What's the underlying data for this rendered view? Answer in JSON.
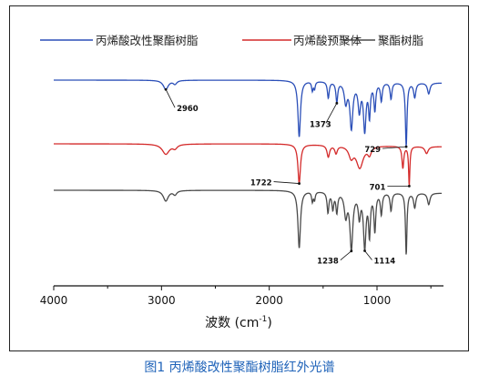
{
  "chart_data": {
    "type": "line",
    "xlabel": "波数 (cm",
    "xlabel_sup": "-1",
    "xlabel_close": ")",
    "ylabel": "",
    "xlim": [
      4000,
      400
    ],
    "x_reversed": true,
    "grid": false,
    "legend_position": "top",
    "x_ticks": [
      4000,
      3000,
      2000,
      1000
    ],
    "series": [
      {
        "name": "丙烯酸改性聚酯树脂",
        "color": "#2b4fb8",
        "baseline": 0.0,
        "peaks": [
          {
            "x": 2960,
            "depth": 0.1,
            "width": 28
          },
          {
            "x": 2875,
            "depth": 0.04,
            "width": 20
          },
          {
            "x": 1722,
            "depth": 0.62,
            "width": 14
          },
          {
            "x": 1600,
            "depth": 0.1,
            "width": 8
          },
          {
            "x": 1580,
            "depth": 0.08,
            "width": 8
          },
          {
            "x": 1452,
            "depth": 0.18,
            "width": 10
          },
          {
            "x": 1373,
            "depth": 0.22,
            "width": 10
          },
          {
            "x": 1290,
            "depth": 0.22,
            "width": 16
          },
          {
            "x": 1238,
            "depth": 0.5,
            "width": 16
          },
          {
            "x": 1164,
            "depth": 0.3,
            "width": 14
          },
          {
            "x": 1114,
            "depth": 0.52,
            "width": 14
          },
          {
            "x": 1070,
            "depth": 0.36,
            "width": 10
          },
          {
            "x": 1020,
            "depth": 0.3,
            "width": 10
          },
          {
            "x": 960,
            "depth": 0.2,
            "width": 10
          },
          {
            "x": 870,
            "depth": 0.18,
            "width": 10
          },
          {
            "x": 729,
            "depth": 0.7,
            "width": 9
          },
          {
            "x": 650,
            "depth": 0.16,
            "width": 12
          },
          {
            "x": 520,
            "depth": 0.12,
            "width": 14
          }
        ]
      },
      {
        "name": "丙烯酸预聚体",
        "color": "#d42a2a",
        "baseline": 0.0,
        "peaks": [
          {
            "x": 2960,
            "depth": 0.13,
            "width": 40
          },
          {
            "x": 2875,
            "depth": 0.05,
            "width": 25
          },
          {
            "x": 1722,
            "depth": 0.5,
            "width": 14
          },
          {
            "x": 1452,
            "depth": 0.15,
            "width": 14
          },
          {
            "x": 1380,
            "depth": 0.1,
            "width": 14
          },
          {
            "x": 1240,
            "depth": 0.14,
            "width": 26
          },
          {
            "x": 1160,
            "depth": 0.28,
            "width": 38
          },
          {
            "x": 1070,
            "depth": 0.1,
            "width": 20
          },
          {
            "x": 760,
            "depth": 0.28,
            "width": 10
          },
          {
            "x": 701,
            "depth": 0.5,
            "width": 7
          },
          {
            "x": 540,
            "depth": 0.09,
            "width": 18
          }
        ]
      },
      {
        "name": "聚酯树脂",
        "color": "#4a4a4a",
        "baseline": 0.0,
        "peaks": [
          {
            "x": 2960,
            "depth": 0.13,
            "width": 28
          },
          {
            "x": 2875,
            "depth": 0.05,
            "width": 20
          },
          {
            "x": 1722,
            "depth": 0.7,
            "width": 14
          },
          {
            "x": 1600,
            "depth": 0.12,
            "width": 8
          },
          {
            "x": 1580,
            "depth": 0.1,
            "width": 8
          },
          {
            "x": 1455,
            "depth": 0.25,
            "width": 10
          },
          {
            "x": 1410,
            "depth": 0.2,
            "width": 10
          },
          {
            "x": 1373,
            "depth": 0.24,
            "width": 10
          },
          {
            "x": 1290,
            "depth": 0.28,
            "width": 16
          },
          {
            "x": 1238,
            "depth": 0.68,
            "width": 16
          },
          {
            "x": 1164,
            "depth": 0.28,
            "width": 12
          },
          {
            "x": 1114,
            "depth": 0.66,
            "width": 14
          },
          {
            "x": 1070,
            "depth": 0.5,
            "width": 10
          },
          {
            "x": 1020,
            "depth": 0.46,
            "width": 10
          },
          {
            "x": 960,
            "depth": 0.26,
            "width": 10
          },
          {
            "x": 870,
            "depth": 0.22,
            "width": 10
          },
          {
            "x": 729,
            "depth": 0.76,
            "width": 8
          },
          {
            "x": 650,
            "depth": 0.18,
            "width": 12
          },
          {
            "x": 520,
            "depth": 0.14,
            "width": 14
          }
        ]
      }
    ],
    "annotations": [
      {
        "text": "2960",
        "series": 0,
        "x": 2960
      },
      {
        "text": "1373",
        "series": 0,
        "x": 1373
      },
      {
        "text": "729",
        "series": 0,
        "x": 729
      },
      {
        "text": "1722",
        "series": 1,
        "x": 1722
      },
      {
        "text": "701",
        "series": 1,
        "x": 701
      },
      {
        "text": "1238",
        "series": 2,
        "x": 1238
      },
      {
        "text": "1114",
        "series": 2,
        "x": 1114
      }
    ]
  },
  "caption": "图1 丙烯酸改性聚酯树脂红外光谱"
}
